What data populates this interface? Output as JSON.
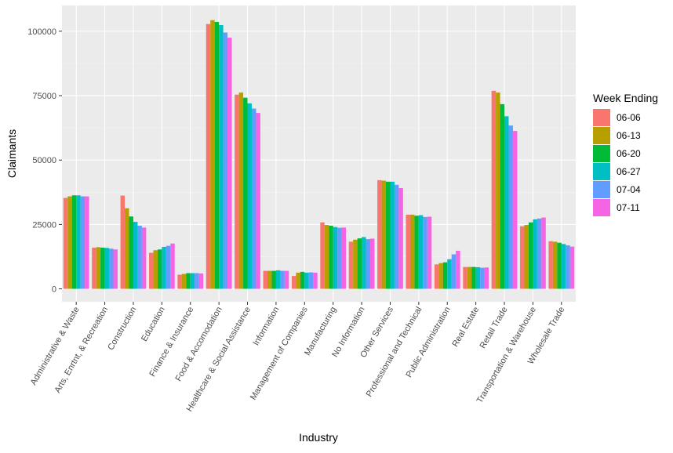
{
  "chart_data": {
    "type": "bar",
    "title": "",
    "xlabel": "Industry",
    "ylabel": "Claimants",
    "ylim": [
      -5000,
      110000
    ],
    "yticks": [
      0,
      25000,
      50000,
      75000,
      100000
    ],
    "ytick_labels": [
      "0",
      "25000",
      "50000",
      "75000",
      "100000"
    ],
    "grid": true,
    "legend_position": "right",
    "legend_title": "Week Ending",
    "categories": [
      "Administrative & Waste",
      "Arts, Enrtnt, & Recreation",
      "Construction",
      "Education",
      "Finance & Insurance",
      "Food & Accomodation",
      "Healthcare & Social Assistance",
      "Information",
      "Management of Companies",
      "Manufacturing",
      "No Information",
      "Other Services",
      "Professional and Technical",
      "Public Administration",
      "Real Estate",
      "Retail Trade",
      "Transportation & Warehouse",
      "Wholesale Trade"
    ],
    "series": [
      {
        "name": "06-06",
        "color": "#F8766D",
        "values": [
          35300,
          16000,
          36200,
          14000,
          5500,
          102800,
          75400,
          7000,
          5000,
          25800,
          18300,
          42200,
          28800,
          9500,
          8500,
          76900,
          24300,
          18500
        ]
      },
      {
        "name": "06-13",
        "color": "#B79F00",
        "values": [
          35900,
          16200,
          31300,
          15000,
          5800,
          104300,
          76200,
          7000,
          6300,
          24800,
          19100,
          42000,
          28800,
          10000,
          8500,
          76200,
          24800,
          18300
        ]
      },
      {
        "name": "06-20",
        "color": "#00BA38",
        "values": [
          36300,
          16000,
          28100,
          15300,
          6100,
          103600,
          74200,
          7000,
          6600,
          24500,
          19600,
          41600,
          28400,
          10300,
          8500,
          71700,
          25800,
          17900
        ]
      },
      {
        "name": "06-27",
        "color": "#00BFC4",
        "values": [
          36300,
          15900,
          26000,
          16300,
          6100,
          102400,
          72000,
          7200,
          6300,
          24000,
          20100,
          41600,
          28600,
          11500,
          8400,
          67000,
          27000,
          17400
        ]
      },
      {
        "name": "07-04",
        "color": "#619CFF",
        "values": [
          35900,
          15600,
          24500,
          16700,
          6100,
          99500,
          70000,
          7000,
          6400,
          23700,
          19300,
          40400,
          27900,
          13400,
          8200,
          63400,
          27300,
          16900
        ]
      },
      {
        "name": "07-11",
        "color": "#F564E3",
        "values": [
          35900,
          15300,
          23800,
          17600,
          6000,
          97500,
          68300,
          7000,
          6300,
          23800,
          19500,
          39100,
          28000,
          14800,
          8300,
          61300,
          27700,
          16400
        ]
      }
    ]
  }
}
